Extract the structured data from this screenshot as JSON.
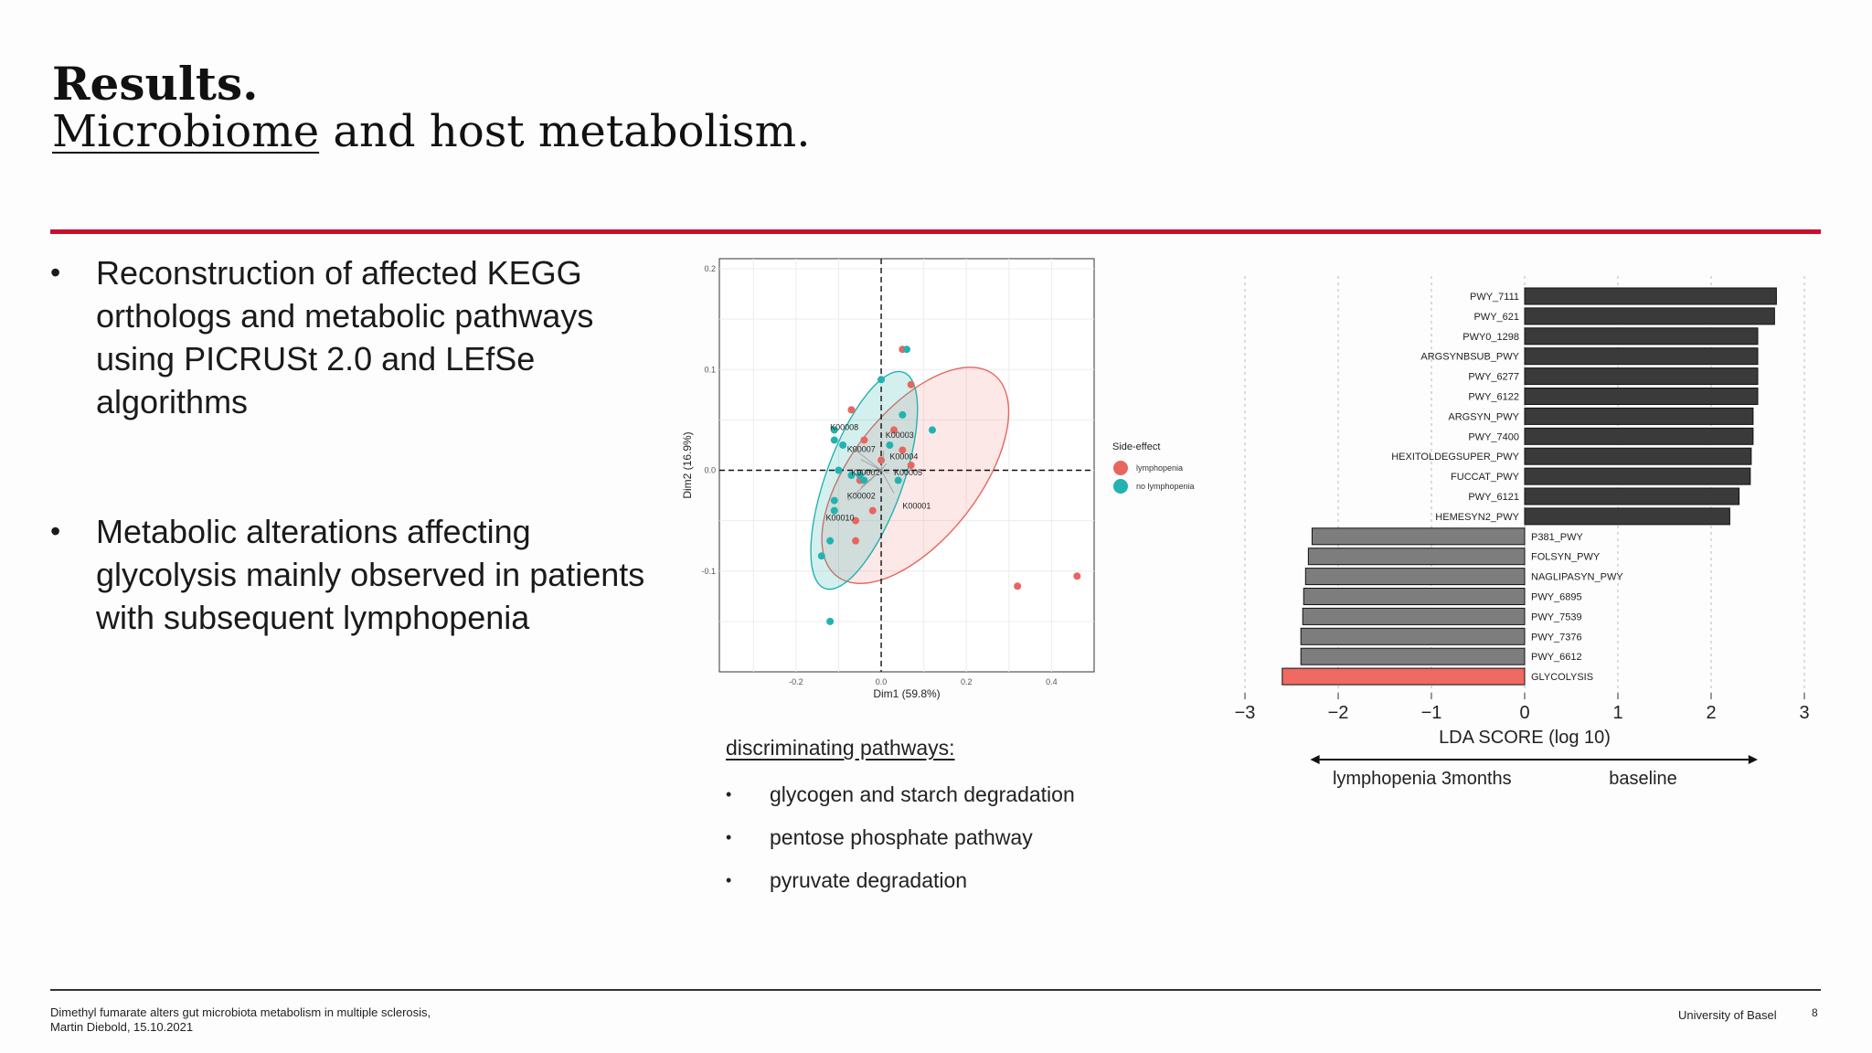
{
  "title": {
    "line1": "Results.",
    "line2_underlined": "Microbiome",
    "line2_rest": " and host metabolism."
  },
  "bullets": [
    "Reconstruction of affected KEGG orthologs and metabolic pathways using PICRUSt 2.0 and LEfSe algorithms",
    "Metabolic alterations affecting glycolysis mainly observed in patients with subsequent lymphopenia"
  ],
  "bullet_symbol": "•",
  "discriminating": {
    "title": "discriminating pathways:",
    "items": [
      "glycogen and starch degradation",
      "pentose phosphate pathway",
      "pyruvate degradation"
    ]
  },
  "footer": {
    "citation_line1": "Dimethyl fumarate alters gut microbiota metabolism in multiple sclerosis,",
    "citation_line2": "Martin Diebold, 15.10.2021",
    "institution": "University of Basel",
    "page_number": "8"
  },
  "colors": {
    "accent_red": "#c8102e",
    "lymphopenia": "#e8665f",
    "no_lymphopenia": "#22b3b0",
    "bar_dark": "#3a3a3a",
    "bar_gray": "#7d7d7d",
    "bar_red": "#ee6a62"
  },
  "chart_data": [
    {
      "type": "scatter",
      "xlabel": "Dim1 (59.8%)",
      "ylabel": "Dim2 (16.9%)",
      "xticks": [
        "-0.2",
        "0.0",
        "0.2",
        "0.4"
      ],
      "yticks": [
        "0.2",
        "0.1",
        "0.0",
        "-0.1"
      ],
      "xlim": [
        -0.38,
        0.5
      ],
      "ylim": [
        -0.2,
        0.21
      ],
      "legend_title": "Side-effect",
      "legend_position": "right",
      "series": [
        {
          "name": "lymphopenia",
          "points": [
            [
              0.05,
              0.12
            ],
            [
              0.07,
              0.085
            ],
            [
              -0.07,
              0.06
            ],
            [
              -0.04,
              0.03
            ],
            [
              0.03,
              0.04
            ],
            [
              0.05,
              0.02
            ],
            [
              0.0,
              0.01
            ],
            [
              0.07,
              0.005
            ],
            [
              -0.05,
              -0.01
            ],
            [
              -0.02,
              -0.04
            ],
            [
              -0.06,
              -0.05
            ],
            [
              -0.06,
              -0.07
            ],
            [
              0.32,
              -0.115
            ],
            [
              0.46,
              -0.105
            ]
          ]
        },
        {
          "name": "no lymphopenia",
          "points": [
            [
              0.06,
              0.12
            ],
            [
              0.0,
              0.09
            ],
            [
              0.12,
              0.04
            ],
            [
              0.05,
              0.055
            ],
            [
              -0.11,
              0.04
            ],
            [
              -0.11,
              0.03
            ],
            [
              -0.09,
              0.025
            ],
            [
              0.02,
              0.025
            ],
            [
              -0.1,
              0.0
            ],
            [
              -0.07,
              -0.005
            ],
            [
              -0.05,
              -0.005
            ],
            [
              -0.04,
              -0.01
            ],
            [
              0.04,
              -0.01
            ],
            [
              -0.11,
              -0.03
            ],
            [
              -0.11,
              -0.04
            ],
            [
              -0.12,
              -0.07
            ],
            [
              -0.14,
              -0.085
            ],
            [
              -0.12,
              -0.15
            ]
          ]
        }
      ],
      "loading_labels": [
        {
          "label": "K00008",
          "x": -0.12,
          "y": 0.04
        },
        {
          "label": "K00003",
          "x": 0.01,
          "y": 0.032
        },
        {
          "label": "K00007",
          "x": -0.08,
          "y": 0.018
        },
        {
          "label": "K00004",
          "x": 0.02,
          "y": 0.011
        },
        {
          "label": "K00002",
          "x": -0.07,
          "y": -0.005
        },
        {
          "label": "K00005",
          "x": 0.03,
          "y": -0.005
        },
        {
          "label": "K00002",
          "x": -0.08,
          "y": -0.028
        },
        {
          "label": "K00001",
          "x": 0.05,
          "y": -0.038
        },
        {
          "label": "K00010",
          "x": -0.13,
          "y": -0.05
        }
      ],
      "ellipses": [
        {
          "group": "lymphopenia",
          "center": [
            0.08,
            -0.005
          ],
          "rx": 0.3,
          "ry": 0.15,
          "angle_deg": -52
        },
        {
          "group": "no lymphopenia",
          "center": [
            -0.04,
            -0.01
          ],
          "rx": 0.27,
          "ry": 0.09,
          "angle_deg": -70
        }
      ]
    },
    {
      "type": "bar",
      "orientation": "horizontal",
      "xlabel": "LDA SCORE (log 10)",
      "xlim": [
        -3,
        3
      ],
      "xticks": [
        "−3",
        "−2",
        "−1",
        "0",
        "1",
        "2",
        "3"
      ],
      "categories": [
        "PWY_7111",
        "PWY_621",
        "PWY0_1298",
        "ARGSYNBSUB_PWY",
        "PWY_6277",
        "PWY_6122",
        "ARGSYN_PWY",
        "PWY_7400",
        "HEXITOLDEGSUPER_PWY",
        "FUCCAT_PWY",
        "PWY_6121",
        "HEMESYN2_PWY",
        "P381_PWY",
        "FOLSYN_PWY",
        "NAGLIPASYN_PWY",
        "PWY_6895",
        "PWY_7539",
        "PWY_7376",
        "PWY_6612",
        "GLYCOLYSIS"
      ],
      "values": [
        2.7,
        2.68,
        2.5,
        2.5,
        2.5,
        2.5,
        2.45,
        2.45,
        2.43,
        2.42,
        2.3,
        2.2,
        -2.28,
        -2.32,
        -2.35,
        -2.37,
        -2.38,
        -2.4,
        -2.4,
        -2.6
      ],
      "bar_groups": [
        "dark",
        "dark",
        "dark",
        "dark",
        "dark",
        "dark",
        "dark",
        "dark",
        "dark",
        "dark",
        "dark",
        "dark",
        "gray",
        "gray",
        "gray",
        "gray",
        "gray",
        "gray",
        "gray",
        "red"
      ],
      "direction_left": "lymphopenia 3months",
      "direction_right": "baseline"
    }
  ]
}
